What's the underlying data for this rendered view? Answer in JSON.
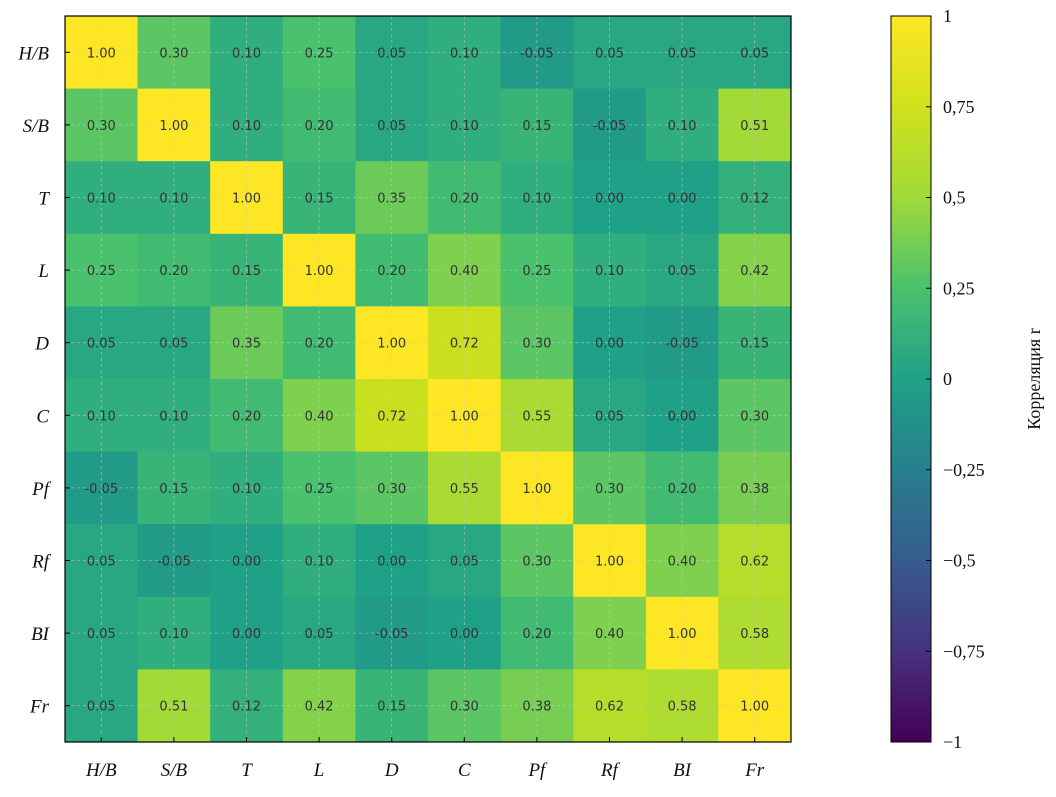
{
  "chart_data": {
    "type": "heatmap",
    "title": "",
    "xlabel": "",
    "ylabel": "",
    "row_labels": [
      "H/B",
      "S/B",
      "T",
      "L",
      "D",
      "C",
      "Pf",
      "Rf",
      "BI",
      "Fr"
    ],
    "col_labels": [
      "H/B",
      "S/B",
      "T",
      "L",
      "D",
      "C",
      "Pf",
      "Rf",
      "BI",
      "Fr"
    ],
    "values": [
      [
        1.0,
        0.3,
        0.1,
        0.25,
        0.05,
        0.1,
        -0.05,
        0.05,
        0.05,
        0.05
      ],
      [
        0.3,
        1.0,
        0.1,
        0.2,
        0.05,
        0.1,
        0.15,
        -0.05,
        0.1,
        0.51
      ],
      [
        0.1,
        0.1,
        1.0,
        0.15,
        0.35,
        0.2,
        0.1,
        0.0,
        0.0,
        0.12
      ],
      [
        0.25,
        0.2,
        0.15,
        1.0,
        0.2,
        0.4,
        0.25,
        0.1,
        0.05,
        0.42
      ],
      [
        0.05,
        0.05,
        0.35,
        0.2,
        1.0,
        0.72,
        0.3,
        0.0,
        -0.05,
        0.15
      ],
      [
        0.1,
        0.1,
        0.2,
        0.4,
        0.72,
        1.0,
        0.55,
        0.05,
        0.0,
        0.3
      ],
      [
        -0.05,
        0.15,
        0.1,
        0.25,
        0.3,
        0.55,
        1.0,
        0.3,
        0.2,
        0.38
      ],
      [
        0.05,
        -0.05,
        0.0,
        0.1,
        0.0,
        0.05,
        0.3,
        1.0,
        0.4,
        0.62
      ],
      [
        0.05,
        0.1,
        0.0,
        0.05,
        -0.05,
        0.0,
        0.2,
        0.4,
        1.0,
        0.58
      ],
      [
        0.05,
        0.51,
        0.12,
        0.42,
        0.15,
        0.3,
        0.38,
        0.62,
        0.58,
        1.0
      ]
    ],
    "cell_labels_format": "2 decimals",
    "colormap": "viridis",
    "color_range": [
      -1,
      1
    ],
    "grid": true,
    "colorbar": {
      "label": "Корреляция r",
      "ticks": [
        1,
        0.75,
        0.5,
        0.25,
        0,
        -0.25,
        -0.5,
        -0.75,
        -1
      ],
      "tick_labels": [
        "1",
        "0,75",
        "0,5",
        "0,25",
        "0",
        "−0,25",
        "−0,5",
        "−0,75",
        "−1"
      ],
      "placement": "right"
    }
  }
}
